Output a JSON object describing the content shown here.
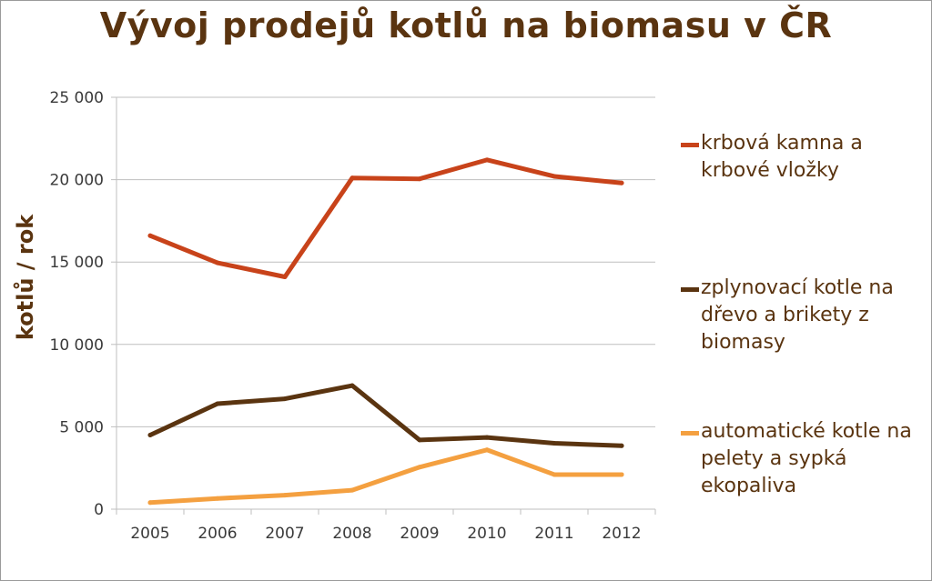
{
  "chart_data": {
    "type": "line",
    "title": "Vývoj prodejů kotlů na biomasu v ČR",
    "xlabel": "",
    "ylabel": "kotlů / rok",
    "categories": [
      "2005",
      "2006",
      "2007",
      "2008",
      "2009",
      "2010",
      "2011",
      "2012"
    ],
    "ylim": [
      0,
      25000
    ],
    "yticks": [
      0,
      5000,
      10000,
      15000,
      20000,
      25000
    ],
    "ytick_labels": [
      "0",
      "5 000",
      "10 000",
      "15 000",
      "20 000",
      "25 000"
    ],
    "grid": true,
    "legend_position": "right",
    "series": [
      {
        "name": "krbová kamna a krbové vložky",
        "color": "#c8431a",
        "values": [
          16600,
          14950,
          14100,
          20100,
          20050,
          21200,
          20200,
          19800
        ]
      },
      {
        "name": "zplynovací kotle na dřevo a brikety z biomasy",
        "color": "#5a3410",
        "values": [
          4500,
          6400,
          6700,
          7500,
          4200,
          4350,
          4000,
          3850
        ]
      },
      {
        "name": "automatické kotle na pelety a sypká ekopaliva",
        "color": "#f4a040",
        "values": [
          400,
          650,
          850,
          1150,
          2550,
          3600,
          2100,
          2100
        ]
      }
    ]
  }
}
